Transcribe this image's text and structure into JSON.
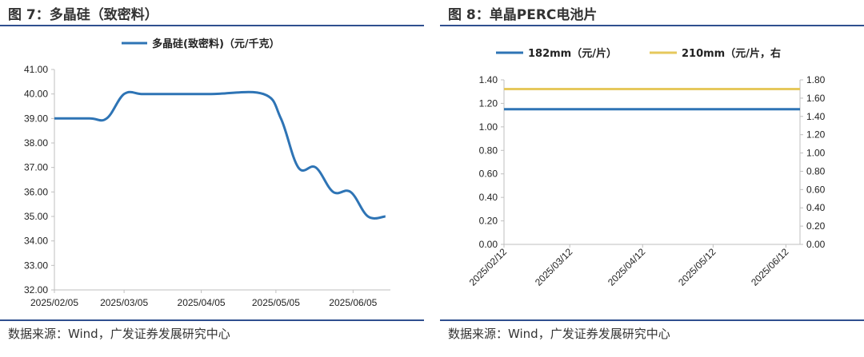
{
  "figures": [
    {
      "title": "图 7：多晶硅（致密料）",
      "source": "数据来源：Wind，广发证券发展研究中心"
    },
    {
      "title": "图 8：单晶PERC电池片",
      "source": "数据来源：Wind，广发证券发展研究中心"
    }
  ],
  "colors": {
    "rule": "#2f4f8f",
    "series_blue": "#2e74b5",
    "series_gold": "#e6c85c",
    "axis": "#bfbfbf"
  },
  "chart_data": [
    {
      "type": "line",
      "title": "",
      "legend_position": "top-center",
      "grid": false,
      "ylim": [
        32,
        41
      ],
      "yticks": [
        "32.00",
        "33.00",
        "34.00",
        "35.00",
        "36.00",
        "37.00",
        "38.00",
        "39.00",
        "40.00",
        "41.00"
      ],
      "xticks": [
        "2025/02/05",
        "2025/03/05",
        "2025/04/05",
        "2025/05/05",
        "2025/06/05"
      ],
      "xrange": [
        "2025-02-05",
        "2025-06-20"
      ],
      "series": [
        {
          "name": "多晶硅(致密料)（元/千克）",
          "points": [
            [
              "2025-02-05",
              39.0
            ],
            [
              "2025-02-19",
              39.0
            ],
            [
              "2025-02-26",
              39.0
            ],
            [
              "2025-03-05",
              40.0
            ],
            [
              "2025-03-12",
              40.0
            ],
            [
              "2025-03-19",
              40.0
            ],
            [
              "2025-04-09",
              40.0
            ],
            [
              "2025-04-30",
              40.0
            ],
            [
              "2025-05-07",
              39.0
            ],
            [
              "2025-05-14",
              37.0
            ],
            [
              "2025-05-21",
              37.0
            ],
            [
              "2025-05-28",
              36.0
            ],
            [
              "2025-06-04",
              36.0
            ],
            [
              "2025-06-11",
              35.0
            ],
            [
              "2025-06-18",
              35.0
            ]
          ]
        }
      ]
    },
    {
      "type": "line",
      "title": "",
      "legend_position": "top",
      "grid": false,
      "ylim_left": [
        0,
        1.4
      ],
      "ylim_right": [
        0,
        1.8
      ],
      "yticks_left": [
        "0.00",
        "0.20",
        "0.40",
        "0.60",
        "0.80",
        "1.00",
        "1.20",
        "1.40"
      ],
      "yticks_right": [
        "0.00",
        "0.20",
        "0.40",
        "0.60",
        "0.80",
        "1.00",
        "1.20",
        "1.40",
        "1.60",
        "1.80"
      ],
      "xticks": [
        "2025/02/12",
        "2025/03/12",
        "2025/04/12",
        "2025/05/12",
        "2025/06/12"
      ],
      "xrange": [
        "2025-02-12",
        "2025-06-12"
      ],
      "series": [
        {
          "name": "182mm（元/片）",
          "axis": "left",
          "points": [
            [
              "2025-02-12",
              1.15
            ],
            [
              "2025-06-18",
              1.15
            ]
          ]
        },
        {
          "name": "210mm（元/片，右",
          "axis": "right",
          "points": [
            [
              "2025-02-12",
              1.7
            ],
            [
              "2025-06-18",
              1.7
            ]
          ]
        }
      ]
    }
  ]
}
